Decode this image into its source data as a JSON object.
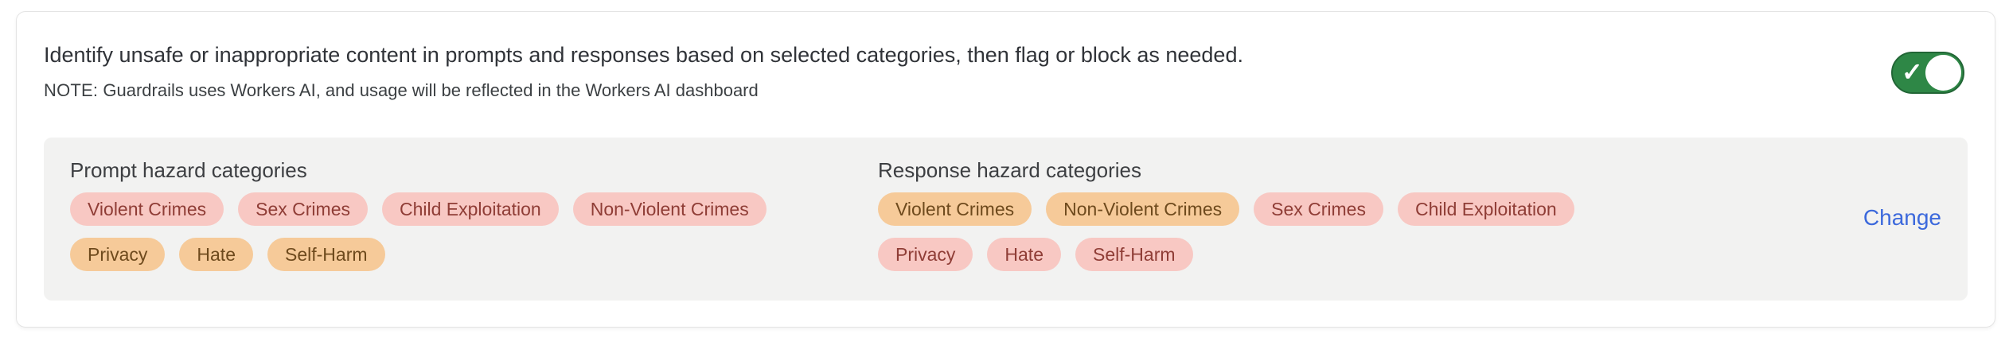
{
  "card": {
    "description": "Identify unsafe or inappropriate content in prompts and responses based on selected categories, then flag or block as needed.",
    "note_label": "NOTE:",
    "note_text": "Guardrails uses Workers AI, and usage will be reflected in the Workers AI dashboard",
    "toggle": {
      "state": "on",
      "check_icon": "✓",
      "on_color": "#2e8746"
    }
  },
  "panel": {
    "prompt": {
      "title": "Prompt hazard categories",
      "rows": [
        [
          {
            "label": "Violent Crimes",
            "variant": "pink"
          },
          {
            "label": "Sex Crimes",
            "variant": "pink"
          },
          {
            "label": "Child Exploitation",
            "variant": "pink"
          },
          {
            "label": "Non-Violent Crimes",
            "variant": "pink"
          }
        ],
        [
          {
            "label": "Privacy",
            "variant": "orange"
          },
          {
            "label": "Hate",
            "variant": "orange"
          },
          {
            "label": "Self-Harm",
            "variant": "orange"
          }
        ]
      ]
    },
    "response": {
      "title": "Response hazard categories",
      "rows": [
        [
          {
            "label": "Violent Crimes",
            "variant": "orange"
          },
          {
            "label": "Non-Violent Crimes",
            "variant": "orange"
          },
          {
            "label": "Sex Crimes",
            "variant": "pink"
          },
          {
            "label": "Child Exploitation",
            "variant": "pink"
          }
        ],
        [
          {
            "label": "Privacy",
            "variant": "pink"
          },
          {
            "label": "Hate",
            "variant": "pink"
          },
          {
            "label": "Self-Harm",
            "variant": "pink"
          }
        ]
      ]
    },
    "change_label": "Change"
  },
  "colors": {
    "link_blue": "#3c69dc",
    "toggle_green": "#2e8746",
    "tag_pink_bg": "#f8c8c3",
    "tag_pink_text": "#8f3d36",
    "tag_orange_bg": "#f6ca99",
    "tag_orange_text": "#6e4a1d",
    "panel_bg": "#f2f2f1"
  }
}
